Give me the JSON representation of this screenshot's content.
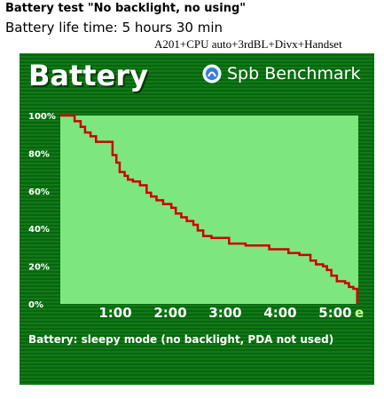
{
  "heading": "Battery test \"No backlight, no using\"",
  "life_time": "Battery life time: 5 hours 30 min",
  "config": "A201+CPU auto+3rdBL+Divx+Handset",
  "card": {
    "title": "Battery",
    "brand": "Spb Benchmark",
    "brand_icon": "spb-logo-icon",
    "footer": "Battery: sleepy mode (no backlight, PDA not used)"
  },
  "colors": {
    "plot_bg": "#7ee67e",
    "line": "#cc0000",
    "card_bg": "#0a6b10"
  },
  "chart_data": {
    "type": "line",
    "title": "Battery",
    "xlabel": "",
    "ylabel": "",
    "x_ticks": [
      "1:00",
      "2:00",
      "3:00",
      "4:00",
      "5:00"
    ],
    "x_end_marker": "e",
    "y_ticks": [
      "0%",
      "20%",
      "40%",
      "60%",
      "80%",
      "100%"
    ],
    "xlim": [
      0,
      5.42
    ],
    "ylim": [
      0,
      100
    ],
    "grid": false,
    "series": [
      {
        "x": [
          0,
          0.26,
          0.37,
          0.45,
          0.55,
          0.65,
          0.95,
          1.02,
          1.08,
          1.17,
          1.23,
          1.32,
          1.45,
          1.57,
          1.65,
          1.75,
          1.87,
          2.02,
          2.1,
          2.2,
          2.3,
          2.42,
          2.5,
          2.6,
          2.75,
          3.07,
          3.37,
          3.8,
          4.15,
          4.35,
          4.55,
          4.65,
          4.78,
          4.85,
          4.93,
          5.03,
          5.18,
          5.25,
          5.33,
          5.4
        ],
        "y": [
          100,
          97,
          94,
          91,
          89,
          86,
          79,
          75,
          70,
          68,
          66,
          65,
          63,
          59,
          57,
          55,
          53,
          51,
          48,
          46,
          44,
          42,
          39,
          36,
          35,
          32,
          31,
          29,
          27,
          26,
          23,
          21,
          20,
          18,
          15,
          12,
          11,
          9,
          8,
          2
        ]
      }
    ]
  }
}
